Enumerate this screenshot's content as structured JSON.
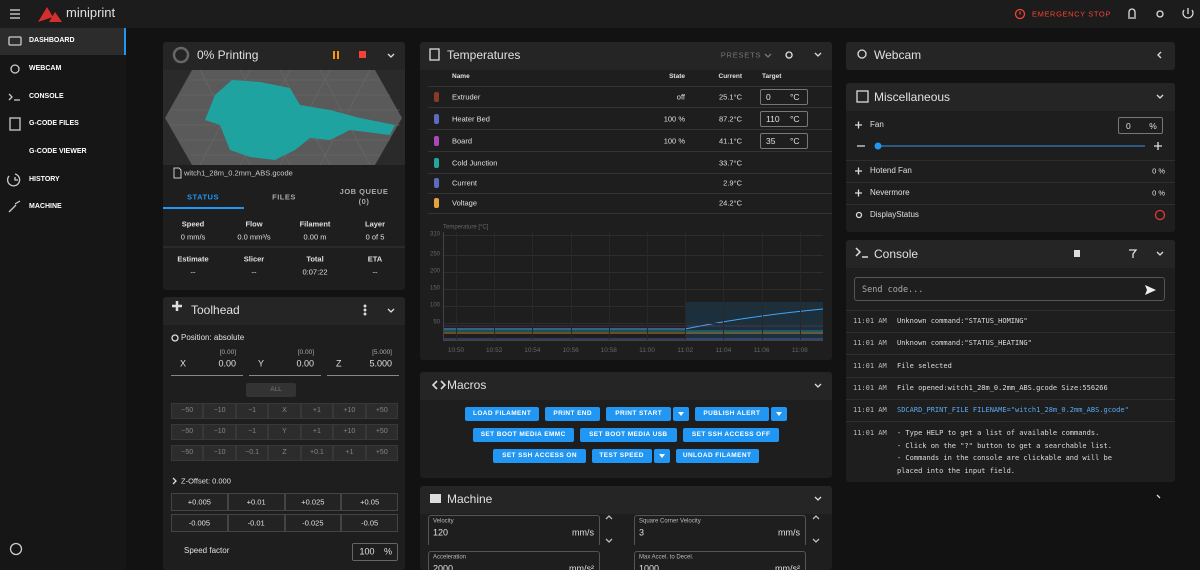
{
  "topbar": {
    "brand": "miniprint",
    "emergency_stop": "EMERGENCY STOP"
  },
  "sidebar": [
    "DASHBOARD",
    "WEBCAM",
    "CONSOLE",
    "G-CODE FILES",
    "G-CODE VIEWER",
    "HISTORY",
    "MACHINE"
  ],
  "status": {
    "title": "0% Printing",
    "filename": "witch1_28m_0.2mm_ABS.gcode",
    "tabs": [
      "STATUS",
      "FILES",
      "JOB QUEUE (0)"
    ],
    "stats": [
      [
        {
          "label": "Speed",
          "value": "0 mm/s"
        },
        {
          "label": "Flow",
          "value": "0.0 mm³/s"
        },
        {
          "label": "Filament",
          "value": "0.00 m"
        },
        {
          "label": "Layer",
          "value": "0 of 5"
        }
      ],
      [
        {
          "label": "Estimate",
          "value": "--"
        },
        {
          "label": "Slicer",
          "value": "--"
        },
        {
          "label": "Total",
          "value": "0:07:22"
        },
        {
          "label": "ETA",
          "value": "--"
        }
      ]
    ]
  },
  "toolhead": {
    "title": "Toolhead",
    "position": "Position: absolute",
    "axes": [
      {
        "name": "X",
        "requested": "[0.00]",
        "value": "0.00"
      },
      {
        "name": "Y",
        "requested": "[0.00]",
        "value": "0.00"
      },
      {
        "name": "Z",
        "requested": "[5.000]",
        "value": "5.000"
      }
    ],
    "home_all": "ALL",
    "jog": [
      [
        "−50",
        "−10",
        "−1",
        "X",
        "+1",
        "+10",
        "+50"
      ],
      [
        "−50",
        "−10",
        "−1",
        "Y",
        "+1",
        "+10",
        "+50"
      ],
      [
        "−50",
        "−10",
        "−0.1",
        "Z",
        "+0.1",
        "+1",
        "+50"
      ]
    ],
    "z_offset": "Z-Offset: 0.000",
    "z_buttons": [
      [
        "+0.005",
        "+0.01",
        "+0.025",
        "+0.05"
      ],
      [
        "-0.005",
        "-0.01",
        "-0.025",
        "-0.05"
      ]
    ],
    "speed_factor": {
      "label": "Speed factor",
      "value": "100",
      "unit": "%"
    }
  },
  "temperatures": {
    "title": "Temperatures",
    "presets": "PRESETS",
    "columns": [
      "Name",
      "State",
      "Current",
      "Target"
    ],
    "rows": [
      {
        "name": "Extruder",
        "state": "off",
        "current": "25.1°C",
        "target": "0",
        "unit": "°C",
        "color": "#8b3a2a"
      },
      {
        "name": "Heater Bed",
        "state": "100 %",
        "current": "87.2°C",
        "target": "110",
        "unit": "°C",
        "color": "#5c6bc0"
      },
      {
        "name": "Board",
        "state": "100 %",
        "current": "41.1°C",
        "target": "35",
        "unit": "°C",
        "color": "#ab47bc"
      },
      {
        "name": "Cold Junction",
        "current": "33.7°C",
        "color": "#26a69a"
      },
      {
        "name": "Current",
        "current": "2.9°C",
        "color": "#5c6bc0"
      },
      {
        "name": "Voltage",
        "current": "24.2°C",
        "color": "#e6a23c"
      }
    ],
    "graph": {
      "axis_label": "Temperature [°C]",
      "yticks": [
        50,
        100,
        150,
        200,
        250,
        310
      ],
      "xticks": [
        "10:50",
        "10:52",
        "10:54",
        "10:56",
        "10:58",
        "11:00",
        "11:02",
        "11:04",
        "11:06",
        "11:08"
      ]
    }
  },
  "macros": {
    "title": "Macros",
    "buttons": [
      [
        {
          "label": "LOAD FILAMENT"
        },
        {
          "label": "PRINT END"
        },
        {
          "label": "PRINT START",
          "menu": true
        },
        {
          "label": "PUBLISH ALERT",
          "menu": true
        }
      ],
      [
        {
          "label": "SET BOOT MEDIA EMMC"
        },
        {
          "label": "SET BOOT MEDIA USB"
        },
        {
          "label": "SET SSH ACCESS OFF"
        }
      ],
      [
        {
          "label": "SET SSH ACCESS ON"
        },
        {
          "label": "TEST SPEED",
          "menu": true
        },
        {
          "label": "UNLOAD FILAMENT"
        }
      ]
    ]
  },
  "machine": {
    "title": "Machine",
    "fields": [
      {
        "label": "Velocity",
        "value": "120",
        "unit": "mm/s"
      },
      {
        "label": "Square Corner Velocity",
        "value": "3",
        "unit": "mm/s"
      },
      {
        "label": "Acceleration",
        "value": "2000",
        "unit": "mm/s²"
      },
      {
        "label": "Max Accel. to Decel.",
        "value": "1000",
        "unit": "mm/s²"
      }
    ]
  },
  "webcam": {
    "title": "Webcam"
  },
  "misc": {
    "title": "Miscellaneous",
    "fan": {
      "name": "Fan",
      "value": "0",
      "unit": "%"
    },
    "outputs": [
      {
        "name": "Hotend Fan",
        "value": "0 %"
      },
      {
        "name": "Nevermore",
        "value": "0 %"
      },
      {
        "name": "DisplayStatus"
      }
    ]
  },
  "console": {
    "title": "Console",
    "placeholder": "Send code...",
    "entries": [
      {
        "time": "11:01 AM",
        "lines": [
          "Unknown command:\"STATUS_HOMING\""
        ]
      },
      {
        "time": "11:01 AM",
        "lines": [
          "Unknown command:\"STATUS_HEATING\""
        ]
      },
      {
        "time": "11:01 AM",
        "lines": [
          "File selected"
        ]
      },
      {
        "time": "11:01 AM",
        "lines": [
          "File opened:witch1_28m_0.2mm_ABS.gcode Size:556266"
        ]
      },
      {
        "time": "11:01 AM",
        "lines": [
          "SDCARD_PRINT_FILE FILENAME=\"witch1_28m_0.2mm_ABS.gcode\""
        ],
        "color": "#5aa9f0"
      },
      {
        "time": "11:01 AM",
        "lines": [
          "- Type HELP to get a list of available commands.",
          "- Click on the \"?\" button to get a searchable list.",
          "- Commands in the console are clickable and will be",
          "placed into the input field."
        ]
      }
    ]
  }
}
